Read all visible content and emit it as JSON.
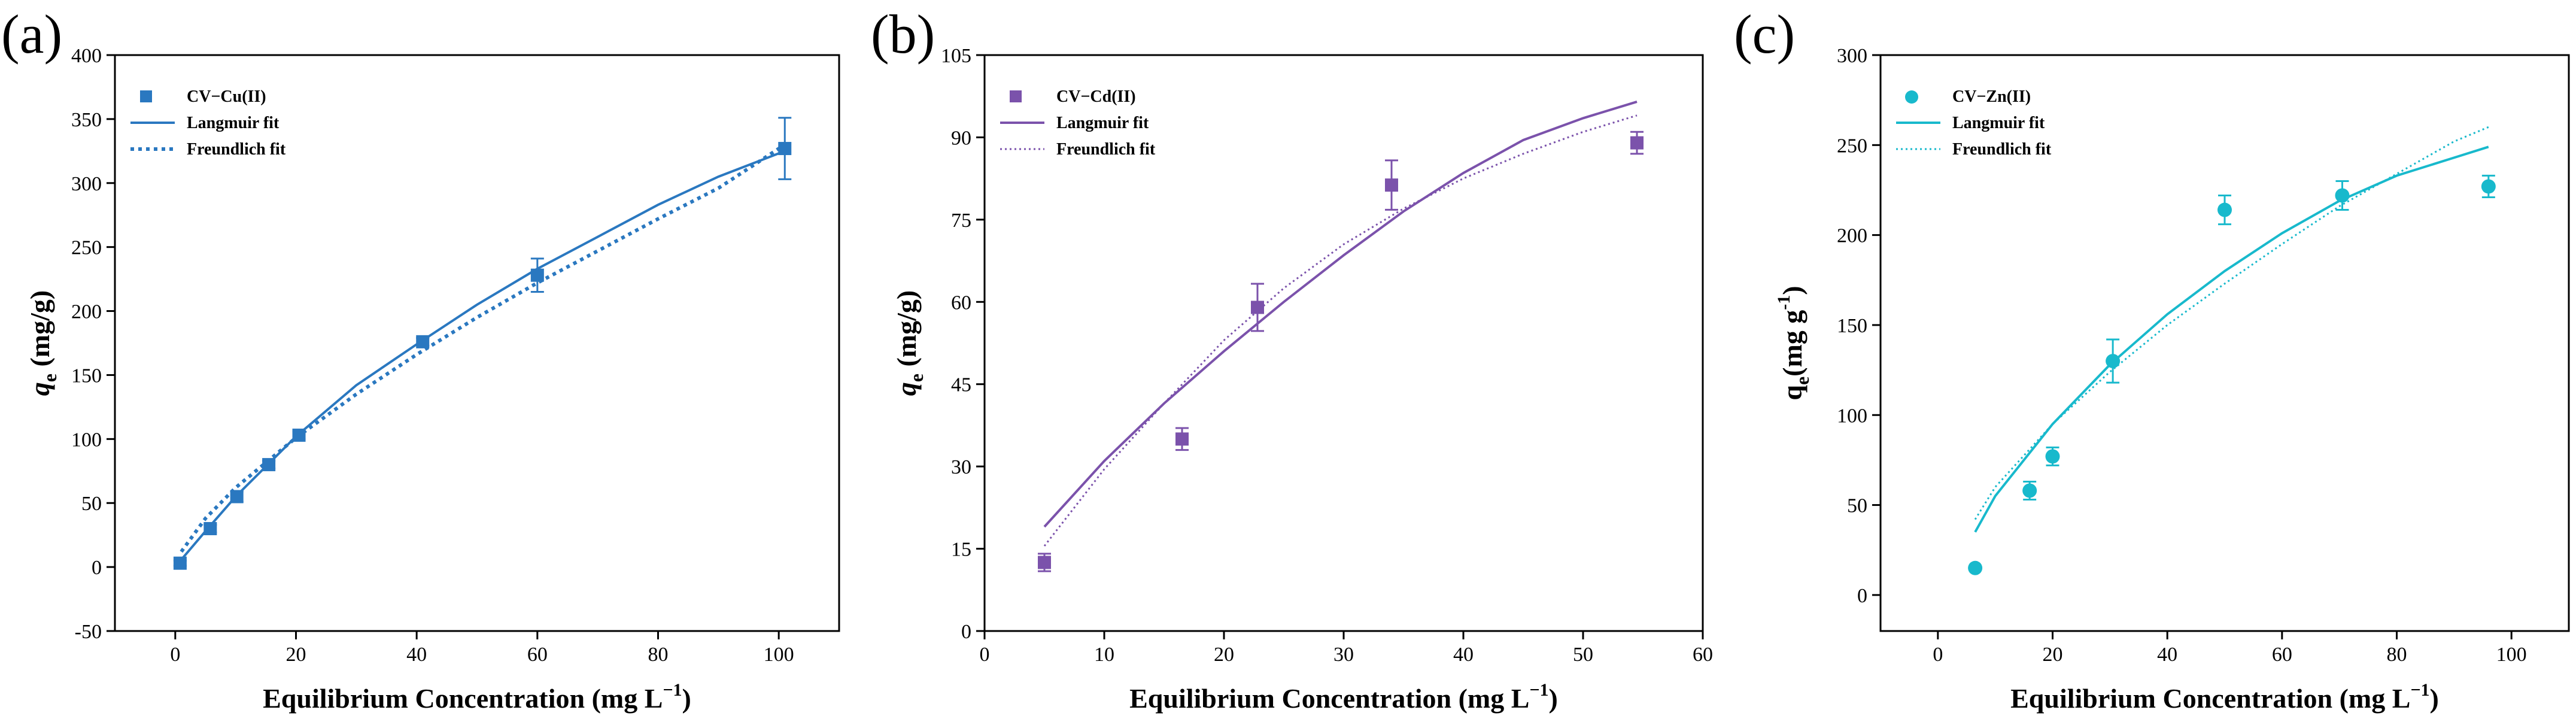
{
  "chart_data": [
    {
      "type": "scatter",
      "panel_label": "(a)",
      "color": "#2a78c0",
      "marker": "square",
      "xlabel_main": "Equilibrium Concentration (mg L",
      "xlabel_sup": "−1",
      "xlabel_close": ")",
      "ylabel_main": "q",
      "ylabel_sub": "e",
      "ylabel_rest": " (mg/g)",
      "xlim": [
        -10,
        110
      ],
      "ylim": [
        -50,
        400
      ],
      "xticks": [
        0,
        20,
        40,
        60,
        80,
        100
      ],
      "yticks": [
        -50,
        0,
        50,
        100,
        150,
        200,
        250,
        300,
        350,
        400
      ],
      "legend": [
        "CV−Cu(II)",
        "Langmuir fit",
        "Freundlich fit"
      ],
      "legend_position": "top-left",
      "points": {
        "x": [
          0.8,
          5.8,
          10.2,
          15.5,
          20.5,
          41,
          60,
          101
        ],
        "y": [
          3,
          30,
          55,
          80,
          103,
          176,
          228,
          327
        ],
        "err": [
          2,
          3,
          4,
          3,
          3,
          3,
          13,
          24
        ]
      },
      "langmuir": {
        "x": [
          0.5,
          5,
          10,
          20,
          30,
          40,
          50,
          60,
          70,
          80,
          90,
          101
        ],
        "y": [
          3,
          28,
          55,
          102,
          142,
          174,
          205,
          233,
          258,
          283,
          305,
          325
        ]
      },
      "freundlich": {
        "x": [
          1,
          5,
          10,
          20,
          30,
          40,
          50,
          60,
          70,
          80,
          90,
          101
        ],
        "y": [
          12,
          38,
          62,
          101,
          135,
          166,
          195,
          222,
          247,
          272,
          296,
          330
        ]
      }
    },
    {
      "type": "scatter",
      "panel_label": "(b)",
      "color": "#7b52ab",
      "marker": "square",
      "xlabel_main": "Equilibrium Concentration (mg L",
      "xlabel_sup": "−1",
      "xlabel_close": ")",
      "ylabel_main": "q",
      "ylabel_sub": "e",
      "ylabel_rest": " (mg/g)",
      "xlim": [
        0,
        60
      ],
      "ylim": [
        0,
        105
      ],
      "xticks": [
        0,
        10,
        20,
        30,
        40,
        50,
        60
      ],
      "yticks": [
        0,
        15,
        30,
        45,
        60,
        75,
        90,
        105
      ],
      "legend": [
        "CV−Cd(II)",
        "Langmuir fit",
        "Freundlich fit"
      ],
      "legend_position": "top-left",
      "points": {
        "x": [
          5,
          16.5,
          22.8,
          34,
          54.5
        ],
        "y": [
          12.5,
          35,
          59,
          81.3,
          89
        ],
        "err": [
          1.6,
          2,
          4.3,
          4.5,
          2
        ]
      },
      "langmuir": {
        "x": [
          5,
          10,
          15,
          20,
          25,
          30,
          35,
          40,
          45,
          50,
          54.5
        ],
        "y": [
          19,
          31,
          41.5,
          51,
          60,
          68.5,
          76.5,
          83.5,
          89.5,
          93.5,
          96.5
        ]
      },
      "freundlich": {
        "x": [
          5,
          10,
          15,
          20,
          25,
          30,
          35,
          40,
          45,
          50,
          54.5
        ],
        "y": [
          15.5,
          29.5,
          41.5,
          53,
          62.5,
          70.5,
          77,
          82.5,
          87,
          91,
          94
        ]
      }
    },
    {
      "type": "scatter",
      "panel_label": "(c)",
      "color": "#18b9cc",
      "marker": "circle",
      "xlabel_main": "Equilibrium Concentration (mg L",
      "xlabel_sup": "−1",
      "xlabel_close": ")",
      "ylabel_main": "q",
      "ylabel_sub": "e",
      "ylabel_rest": "(mg g",
      "ylabel_sup": "-1",
      "ylabel_close": ")",
      "xlim": [
        -10,
        110
      ],
      "ylim": [
        -20,
        300
      ],
      "xticks": [
        0,
        20,
        40,
        60,
        80,
        100
      ],
      "yticks": [
        0,
        50,
        100,
        150,
        200,
        250,
        300
      ],
      "legend": [
        "CV−Zn(II)",
        "Langmuir fit",
        "Freundlich fit"
      ],
      "legend_position": "top-left",
      "points": {
        "x": [
          6.5,
          16,
          20,
          30.5,
          50,
          70.5,
          96
        ],
        "y": [
          15,
          58,
          77,
          130,
          214,
          222,
          227
        ],
        "err": [
          0,
          5,
          5,
          12,
          8,
          8,
          6
        ]
      },
      "langmuir": {
        "x": [
          6.5,
          10,
          20,
          30,
          40,
          50,
          60,
          70,
          80,
          90,
          96
        ],
        "y": [
          35,
          55,
          95,
          128,
          156,
          180,
          201,
          219,
          233,
          243,
          249
        ]
      },
      "freundlich": {
        "x": [
          6.5,
          10,
          20,
          30,
          40,
          50,
          60,
          70,
          80,
          90,
          96
        ],
        "y": [
          42,
          60,
          95,
          124,
          150,
          173,
          195,
          216,
          234,
          252,
          260
        ]
      }
    }
  ]
}
